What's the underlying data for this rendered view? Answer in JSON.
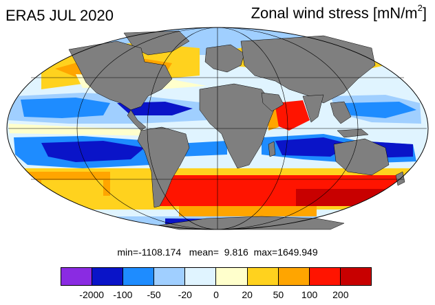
{
  "header": {
    "left_title": "ERA5 JUL 2020",
    "right_title_main": "Zonal wind stress [mN/m",
    "right_title_sup": "2",
    "right_title_close": "]"
  },
  "stats": {
    "min_label": "min=",
    "min_value": "-1108.174",
    "mean_label": "mean=",
    "mean_value": "9.816",
    "max_label": "max=",
    "max_value": "1649.949"
  },
  "colorbar": {
    "colors": [
      "#8a2be2",
      "#0a14c8",
      "#1e8cff",
      "#a0cfff",
      "#e0f4ff",
      "#ffffcc",
      "#ffd21e",
      "#ffa500",
      "#ff1400",
      "#c80000"
    ],
    "tick_labels": [
      "-2000",
      "-100",
      "-50",
      "-20",
      "0",
      "20",
      "50",
      "100",
      "200"
    ]
  },
  "map": {
    "projection": "Mollweide",
    "land_color": "#7f7f7f"
  }
}
